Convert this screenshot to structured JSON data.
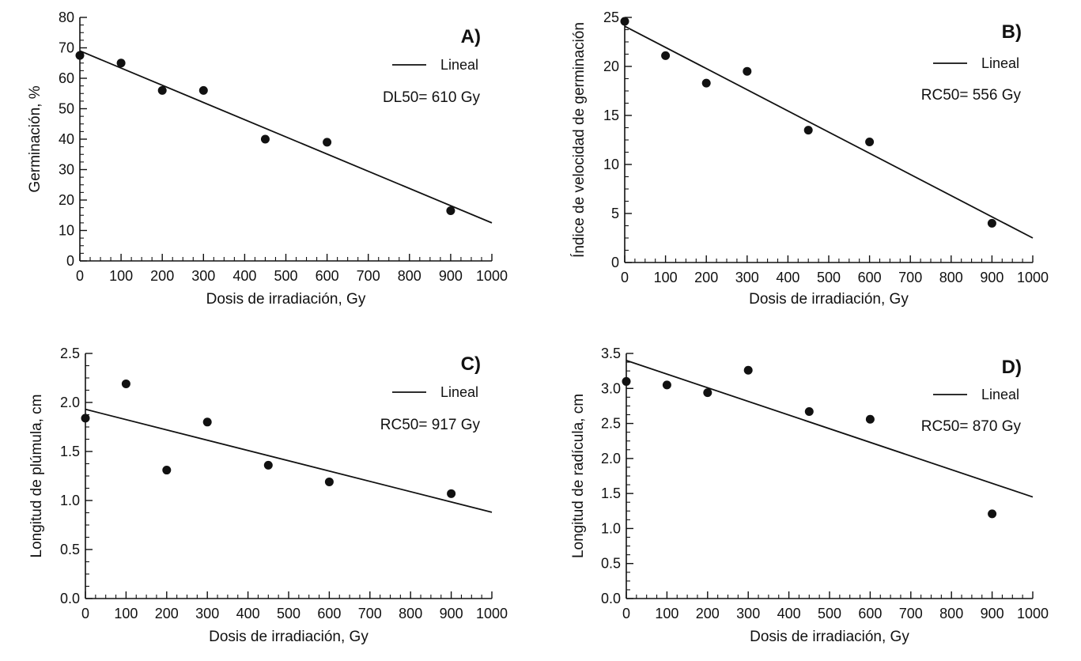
{
  "chart_data": [
    {
      "type": "scatter",
      "panel_label": "A)",
      "xlabel": "Dosis de irradiación, Gy",
      "ylabel": "Germinación, %",
      "xlim": [
        0,
        1000
      ],
      "ylim": [
        0,
        80
      ],
      "xticks": [
        0,
        100,
        200,
        300,
        400,
        500,
        600,
        700,
        800,
        900,
        1000
      ],
      "xticks_labels": [
        "0",
        "100",
        "200",
        "300",
        "400",
        "500",
        "600",
        "700",
        "800",
        "900",
        "1000"
      ],
      "yticks": [
        0,
        10,
        20,
        30,
        40,
        50,
        60,
        70,
        80
      ],
      "yticks_labels": [
        "0",
        "10",
        "20",
        "30",
        "40",
        "50",
        "60",
        "70",
        "80"
      ],
      "points": {
        "x": [
          0,
          100,
          200,
          300,
          450,
          600,
          900
        ],
        "y": [
          67.5,
          65,
          56,
          56,
          40,
          39,
          16.5
        ]
      },
      "fit": {
        "name": "Lineal",
        "x": [
          0,
          1000
        ],
        "y": [
          69,
          12.5
        ]
      },
      "legend": "Lineal",
      "annotation": "DL50= 610 Gy"
    },
    {
      "type": "scatter",
      "panel_label": "B)",
      "xlabel": "Dosis de irradiación, Gy",
      "ylabel": "Índice de velocidad de germinación",
      "xlim": [
        0,
        1000
      ],
      "ylim": [
        0,
        25
      ],
      "xticks": [
        0,
        100,
        200,
        300,
        400,
        500,
        600,
        700,
        800,
        900,
        1000
      ],
      "xticks_labels": [
        "0",
        "100",
        "200",
        "300",
        "400",
        "500",
        "600",
        "700",
        "800",
        "900",
        "1000"
      ],
      "yticks": [
        0,
        5,
        10,
        15,
        20,
        25
      ],
      "yticks_labels": [
        "0",
        "5",
        "10",
        "15",
        "20",
        "25"
      ],
      "points": {
        "x": [
          0,
          100,
          200,
          300,
          450,
          600,
          900
        ],
        "y": [
          24.6,
          21.1,
          18.3,
          19.5,
          13.5,
          12.3,
          4.0
        ]
      },
      "fit": {
        "name": "Lineal",
        "x": [
          0,
          1000
        ],
        "y": [
          24.1,
          2.5
        ]
      },
      "legend": "Lineal",
      "annotation": "RC50= 556 Gy"
    },
    {
      "type": "scatter",
      "panel_label": "C)",
      "xlabel": "Dosis de irradiación, Gy",
      "ylabel": "Longitud de plúmula, cm",
      "xlim": [
        0,
        1000
      ],
      "ylim": [
        0,
        2.5
      ],
      "xticks": [
        0,
        100,
        200,
        300,
        400,
        500,
        600,
        700,
        800,
        900,
        1000
      ],
      "xticks_labels": [
        "0",
        "100",
        "200",
        "300",
        "400",
        "500",
        "600",
        "700",
        "800",
        "900",
        "1000"
      ],
      "yticks": [
        0,
        0.5,
        1,
        1.5,
        2,
        2.5
      ],
      "yticks_labels": [
        "0.0",
        "0.5",
        "1.0",
        "1.5",
        "2.0",
        "2.5"
      ],
      "points": {
        "x": [
          0,
          100,
          200,
          300,
          450,
          600,
          900
        ],
        "y": [
          1.84,
          2.19,
          1.31,
          1.8,
          1.36,
          1.19,
          1.07
        ]
      },
      "fit": {
        "name": "Lineal",
        "x": [
          0,
          1000
        ],
        "y": [
          1.93,
          0.88
        ]
      },
      "legend": "Lineal",
      "annotation": "RC50= 917 Gy"
    },
    {
      "type": "scatter",
      "panel_label": "D)",
      "xlabel": "Dosis de irradiación, Gy",
      "ylabel": "Longitud de radícula, cm",
      "xlim": [
        0,
        1000
      ],
      "ylim": [
        0,
        3.5
      ],
      "xticks": [
        0,
        100,
        200,
        300,
        400,
        500,
        600,
        700,
        800,
        900,
        1000
      ],
      "xticks_labels": [
        "0",
        "100",
        "200",
        "300",
        "400",
        "500",
        "600",
        "700",
        "800",
        "900",
        "1000"
      ],
      "yticks": [
        0,
        0.5,
        1,
        1.5,
        2,
        2.5,
        3,
        3.5
      ],
      "yticks_labels": [
        "0.0",
        "0.5",
        "1.0",
        "1.5",
        "2.0",
        "2.5",
        "3.0",
        "3.5"
      ],
      "points": {
        "x": [
          0,
          100,
          200,
          300,
          450,
          600,
          900
        ],
        "y": [
          3.1,
          3.05,
          2.94,
          3.26,
          2.67,
          2.56,
          1.21
        ]
      },
      "fit": {
        "name": "Lineal",
        "x": [
          0,
          1000
        ],
        "y": [
          3.4,
          1.45
        ]
      },
      "legend": "Lineal",
      "annotation": "RC50= 870 Gy"
    }
  ],
  "colors": {
    "ink": "#111111",
    "background": "#ffffff"
  }
}
